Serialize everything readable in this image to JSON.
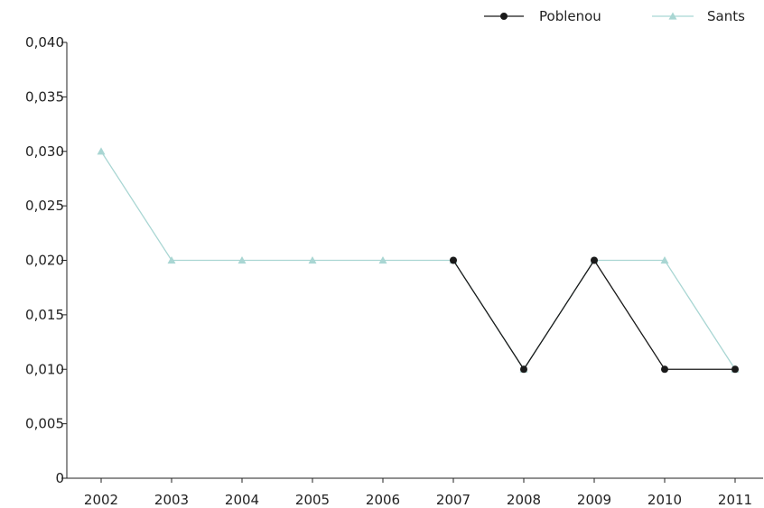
{
  "chart_data": {
    "type": "line",
    "x": [
      "2002",
      "2003",
      "2004",
      "2005",
      "2006",
      "2007",
      "2008",
      "2009",
      "2010",
      "2011"
    ],
    "ylim": [
      0,
      0.04
    ],
    "yticks": [
      "0",
      "0,005",
      "0,010",
      "0,015",
      "0,020",
      "0,025",
      "0,030",
      "0,035",
      "0,040"
    ],
    "ytick_values": [
      0,
      0.005,
      0.01,
      0.015,
      0.02,
      0.025,
      0.03,
      0.035,
      0.04
    ],
    "legend_position": "top-right",
    "grid": false,
    "series": [
      {
        "name": "Poblenou",
        "color": "#1a1a1a",
        "marker": "circle",
        "values": [
          null,
          null,
          null,
          null,
          null,
          0.02,
          0.01,
          0.02,
          0.01,
          0.01
        ]
      },
      {
        "name": "Sants",
        "color": "#a9d6d3",
        "marker": "triangle",
        "values": [
          0.03,
          0.02,
          0.02,
          0.02,
          0.02,
          0.02,
          0.01,
          0.02,
          0.02,
          0.01
        ]
      }
    ]
  }
}
